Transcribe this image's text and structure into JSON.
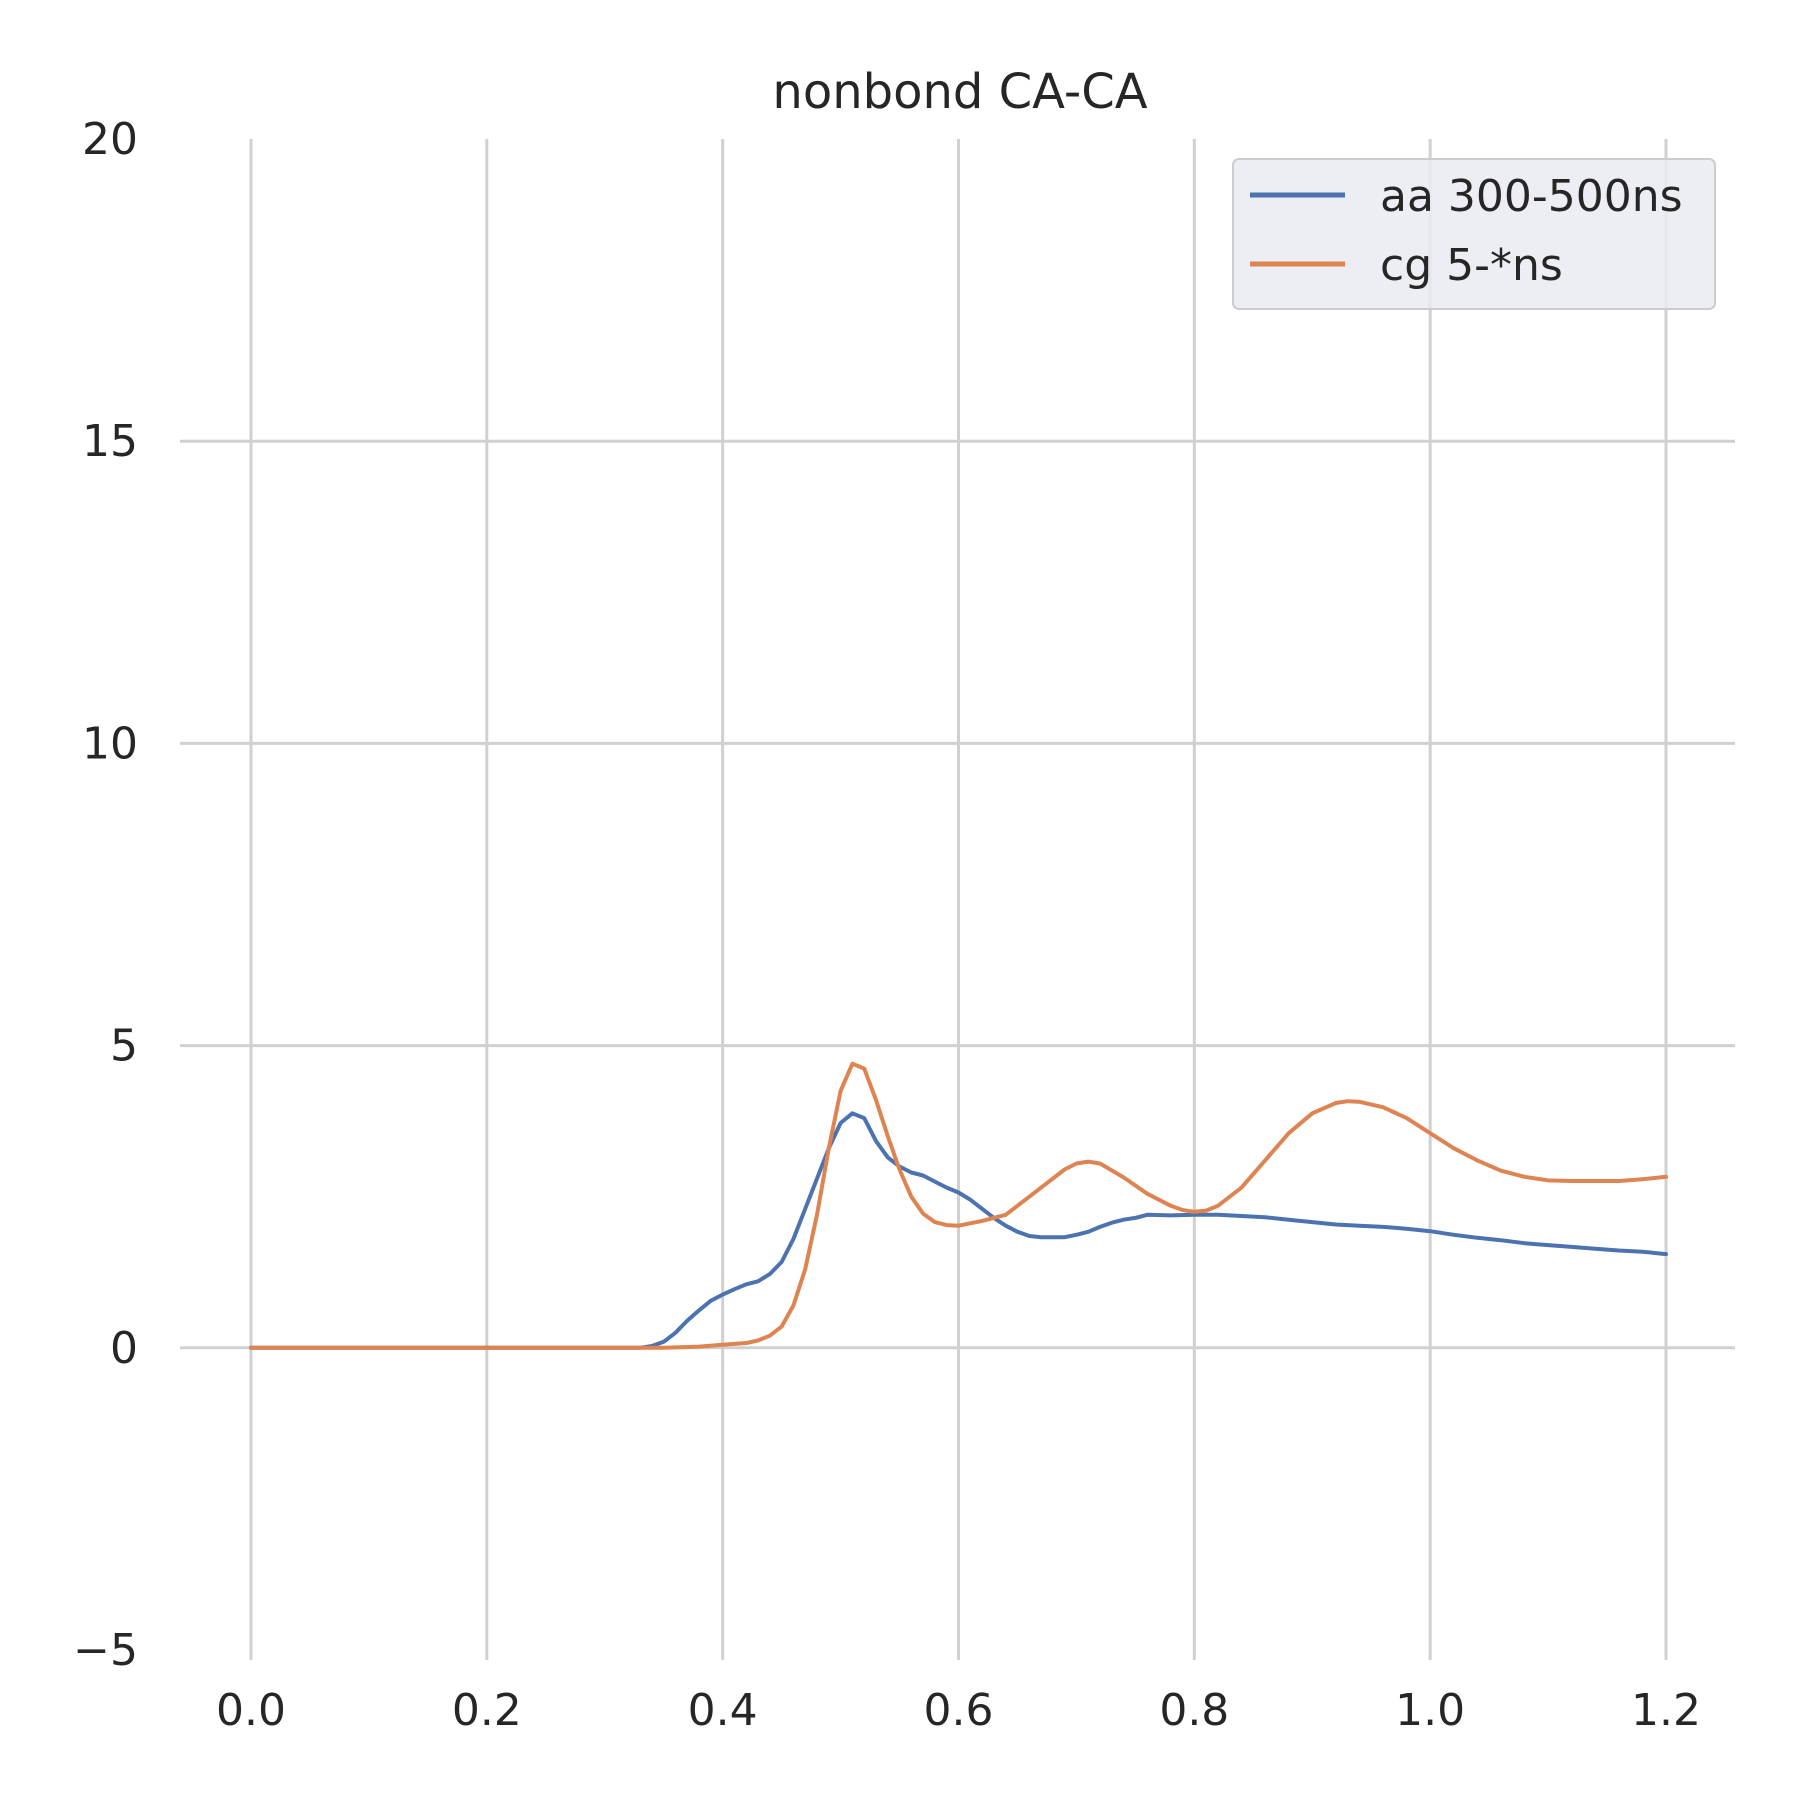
{
  "chart_data": {
    "type": "line",
    "title": "nonbond CA-CA",
    "xlabel": "",
    "ylabel": "",
    "xlim": [
      0.0,
      1.2
    ],
    "ylim": [
      -5,
      20
    ],
    "xticks": [
      "0.0",
      "0.2",
      "0.4",
      "0.6",
      "0.8",
      "1.0",
      "1.2"
    ],
    "yticks": [
      "−5",
      "0",
      "5",
      "10",
      "15",
      "20"
    ],
    "xtick_values": [
      0.0,
      0.2,
      0.4,
      0.6,
      0.8,
      1.0,
      1.2
    ],
    "ytick_values": [
      -5,
      0,
      5,
      10,
      15,
      20
    ],
    "grid": true,
    "legend_position": "top-right",
    "series": [
      {
        "name": "aa 300-500ns",
        "color": "#4c72b0",
        "x": [
          0.0,
          0.1,
          0.2,
          0.3,
          0.33,
          0.34,
          0.35,
          0.36,
          0.37,
          0.38,
          0.39,
          0.4,
          0.41,
          0.42,
          0.43,
          0.44,
          0.45,
          0.46,
          0.47,
          0.48,
          0.49,
          0.5,
          0.51,
          0.52,
          0.53,
          0.54,
          0.55,
          0.56,
          0.57,
          0.58,
          0.59,
          0.6,
          0.61,
          0.62,
          0.63,
          0.64,
          0.65,
          0.66,
          0.67,
          0.68,
          0.69,
          0.7,
          0.71,
          0.72,
          0.73,
          0.74,
          0.75,
          0.76,
          0.78,
          0.8,
          0.82,
          0.84,
          0.86,
          0.88,
          0.9,
          0.92,
          0.94,
          0.96,
          0.98,
          1.0,
          1.02,
          1.04,
          1.06,
          1.08,
          1.1,
          1.12,
          1.14,
          1.16,
          1.18,
          1.2
        ],
        "y": [
          0.0,
          0.0,
          0.0,
          0.0,
          0.0,
          0.03,
          0.1,
          0.25,
          0.45,
          0.62,
          0.78,
          0.88,
          0.97,
          1.05,
          1.1,
          1.22,
          1.42,
          1.8,
          2.3,
          2.8,
          3.3,
          3.72,
          3.88,
          3.8,
          3.42,
          3.15,
          3.0,
          2.9,
          2.85,
          2.75,
          2.65,
          2.57,
          2.45,
          2.3,
          2.15,
          2.02,
          1.92,
          1.85,
          1.83,
          1.83,
          1.83,
          1.87,
          1.92,
          2.0,
          2.07,
          2.12,
          2.15,
          2.2,
          2.19,
          2.2,
          2.2,
          2.18,
          2.16,
          2.12,
          2.08,
          2.04,
          2.02,
          2.0,
          1.97,
          1.93,
          1.87,
          1.82,
          1.78,
          1.73,
          1.7,
          1.67,
          1.64,
          1.61,
          1.59,
          1.55
        ]
      },
      {
        "name": "cg 5-*ns",
        "color": "#dd8452",
        "x": [
          0.0,
          0.1,
          0.2,
          0.3,
          0.35,
          0.38,
          0.4,
          0.42,
          0.43,
          0.44,
          0.45,
          0.46,
          0.47,
          0.48,
          0.49,
          0.5,
          0.51,
          0.52,
          0.53,
          0.54,
          0.55,
          0.56,
          0.57,
          0.58,
          0.59,
          0.6,
          0.62,
          0.64,
          0.66,
          0.68,
          0.69,
          0.7,
          0.71,
          0.72,
          0.74,
          0.76,
          0.78,
          0.79,
          0.8,
          0.81,
          0.82,
          0.84,
          0.86,
          0.88,
          0.9,
          0.92,
          0.93,
          0.94,
          0.96,
          0.98,
          1.0,
          1.02,
          1.04,
          1.06,
          1.08,
          1.1,
          1.12,
          1.14,
          1.16,
          1.18,
          1.2
        ],
        "y": [
          0.0,
          0.0,
          0.0,
          0.0,
          0.0,
          0.02,
          0.05,
          0.08,
          0.12,
          0.2,
          0.35,
          0.7,
          1.3,
          2.2,
          3.3,
          4.25,
          4.7,
          4.62,
          4.1,
          3.5,
          2.95,
          2.5,
          2.22,
          2.08,
          2.03,
          2.02,
          2.1,
          2.2,
          2.5,
          2.8,
          2.95,
          3.05,
          3.08,
          3.05,
          2.82,
          2.55,
          2.35,
          2.28,
          2.25,
          2.27,
          2.35,
          2.65,
          3.1,
          3.55,
          3.88,
          4.05,
          4.08,
          4.07,
          3.98,
          3.8,
          3.55,
          3.3,
          3.1,
          2.93,
          2.83,
          2.77,
          2.76,
          2.76,
          2.76,
          2.79,
          2.83
        ]
      }
    ]
  }
}
